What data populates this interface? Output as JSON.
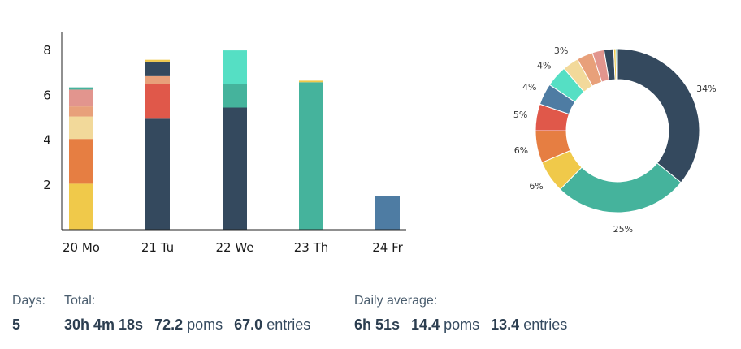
{
  "chart_data": [
    {
      "type": "bar",
      "stacked": true,
      "categories": [
        "20 Mo",
        "21 Tu",
        "22 We",
        "23 Th",
        "24 Fr"
      ],
      "ylim": [
        0,
        8.8
      ],
      "yticks": [
        2,
        4,
        6,
        8
      ],
      "grid": false,
      "segments": [
        [
          {
            "value": 2.05,
            "color": "#f0c94a"
          },
          {
            "value": 2.0,
            "color": "#e67e42"
          },
          {
            "value": 1.0,
            "color": "#f2d99a"
          },
          {
            "value": 0.45,
            "color": "#e8a07a"
          },
          {
            "value": 0.75,
            "color": "#e2958e"
          },
          {
            "value": 0.1,
            "color": "#45b39c"
          }
        ],
        [
          {
            "value": 4.95,
            "color": "#34495e"
          },
          {
            "value": 1.55,
            "color": "#e0584a"
          },
          {
            "value": 0.35,
            "color": "#e8a07a"
          },
          {
            "value": 0.65,
            "color": "#34495e"
          },
          {
            "value": 0.08,
            "color": "#f0c94a"
          }
        ],
        [
          {
            "value": 5.45,
            "color": "#34495e"
          },
          {
            "value": 1.05,
            "color": "#45b39c"
          },
          {
            "value": 1.5,
            "color": "#55dfc4"
          }
        ],
        [
          {
            "value": 6.58,
            "color": "#45b39c"
          },
          {
            "value": 0.07,
            "color": "#f0c94a"
          }
        ],
        [
          {
            "value": 1.5,
            "color": "#4e7ca3"
          }
        ]
      ]
    },
    {
      "type": "pie",
      "donut": true,
      "slices": [
        {
          "value": 34,
          "label": "34%",
          "color": "#34495e"
        },
        {
          "value": 25,
          "label": "25%",
          "color": "#45b39c"
        },
        {
          "value": 6,
          "label": "6%",
          "color": "#f0c94a"
        },
        {
          "value": 6,
          "label": "6%",
          "color": "#e67e42"
        },
        {
          "value": 5,
          "label": "5%",
          "color": "#e0584a"
        },
        {
          "value": 4,
          "label": "4%",
          "color": "#4e7ca3"
        },
        {
          "value": 4,
          "label": "4%",
          "color": "#55dfc4"
        },
        {
          "value": 3,
          "label": "3%",
          "color": "#f2d99a"
        },
        {
          "value": 3,
          "label": "",
          "color": "#e8a07a"
        },
        {
          "value": 2.2,
          "label": "",
          "color": "#e2958e"
        },
        {
          "value": 1.8,
          "label": "",
          "color": "#34495e"
        },
        {
          "value": 0.4,
          "label": "",
          "color": "#f0c94a"
        },
        {
          "value": 0.3,
          "label": "",
          "color": "#45b39c"
        }
      ]
    }
  ],
  "stats": {
    "days_label": "Days:",
    "days_value": "5",
    "total_label": "Total:",
    "total_time": "30h 4m 18s",
    "total_poms_value": "72.2",
    "total_poms_unit": "poms",
    "total_entries_value": "67.0",
    "total_entries_unit": "entries",
    "avg_label": "Daily average:",
    "avg_time": "6h 51s",
    "avg_poms_value": "14.4",
    "avg_poms_unit": "poms",
    "avg_entries_value": "13.4",
    "avg_entries_unit": "entries"
  }
}
